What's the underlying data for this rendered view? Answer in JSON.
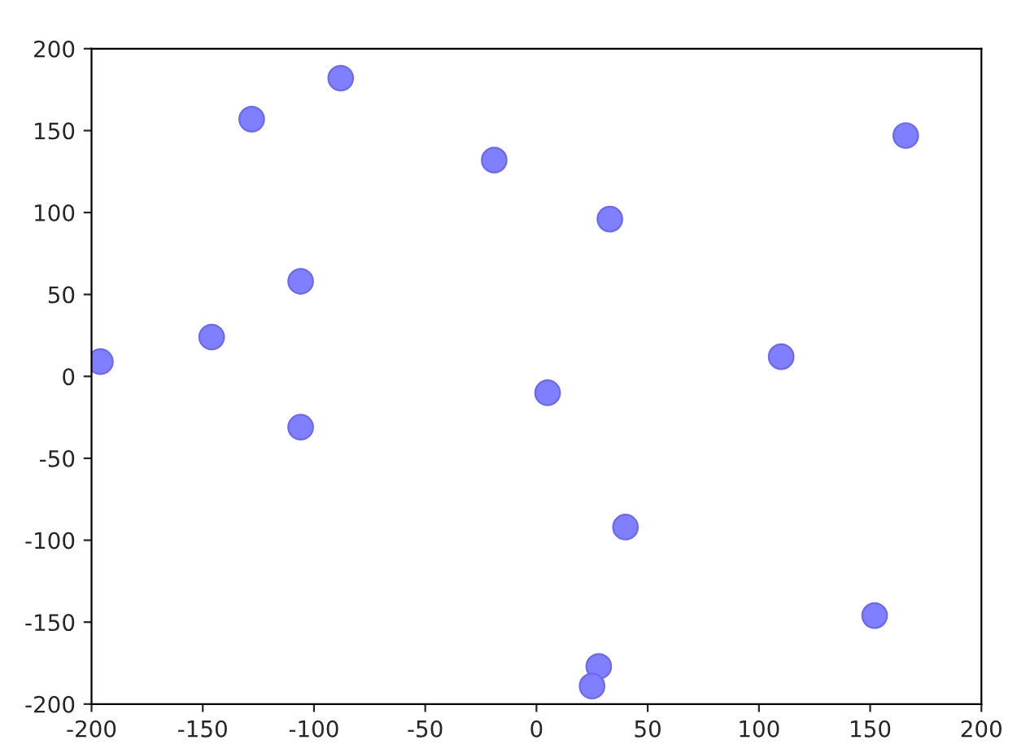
{
  "chart_data": {
    "type": "scatter",
    "x": [
      -196,
      -146,
      -128,
      -88,
      -106,
      -106,
      -19,
      5,
      33,
      40,
      110,
      166,
      152,
      28,
      25
    ],
    "values": [
      9,
      24,
      157,
      182,
      58,
      -31,
      132,
      -10,
      96,
      -92,
      12,
      147,
      -146,
      -177,
      -189
    ],
    "color": "#7f7fff",
    "marker": "circle",
    "xlim": [
      -200,
      200
    ],
    "xticks": [
      -200,
      -150,
      -100,
      -50,
      0,
      50,
      100,
      150,
      200
    ],
    "ylim": [
      -200,
      200
    ],
    "yticks": [
      -200,
      -150,
      -100,
      -50,
      0,
      50,
      100,
      150,
      200
    ],
    "grid": false
  }
}
